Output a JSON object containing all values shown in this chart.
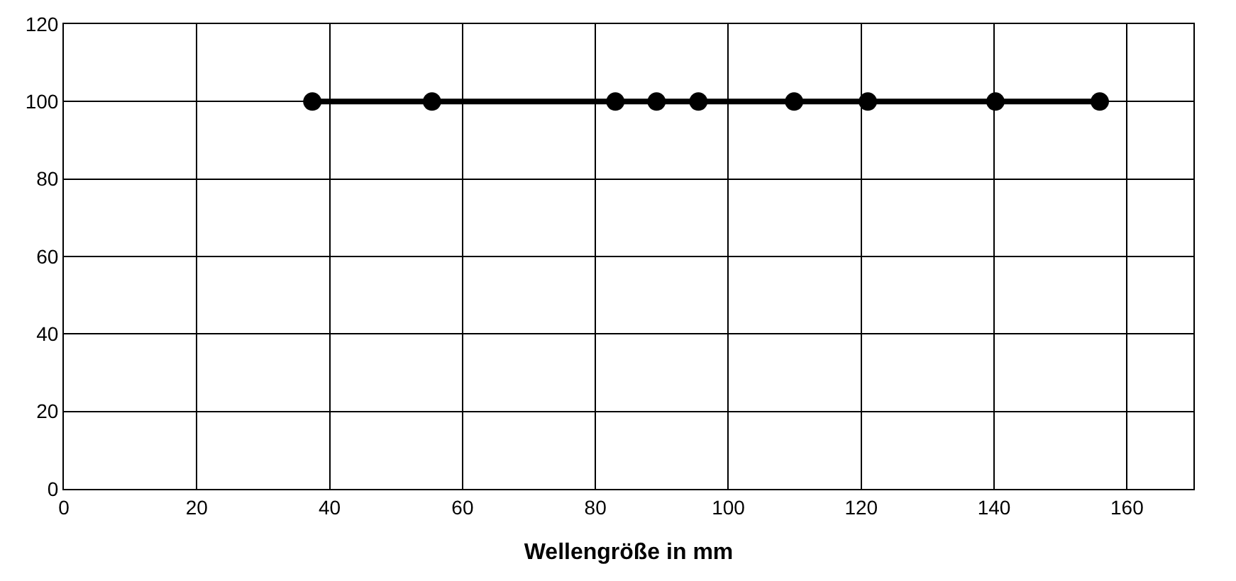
{
  "chart_data": {
    "type": "line",
    "xlabel": "Wellengröße in mm",
    "x": [
      37.4,
      55.4,
      83,
      89.2,
      95.5,
      109.9,
      121,
      140.2,
      155.9
    ],
    "series": [
      {
        "color": "#000000",
        "values": [
          100,
          100,
          100,
          100,
          100,
          100,
          100,
          100,
          100
        ]
      }
    ],
    "xlim": [
      0,
      170
    ],
    "xticks": [
      0,
      20,
      40,
      60,
      80,
      100,
      120,
      140,
      160
    ],
    "ylim": [
      0,
      120
    ],
    "yticks": [
      0,
      20,
      40,
      60,
      80,
      100,
      120
    ],
    "grid": true,
    "legend": false,
    "marker": "circle",
    "line_style": "solid"
  }
}
